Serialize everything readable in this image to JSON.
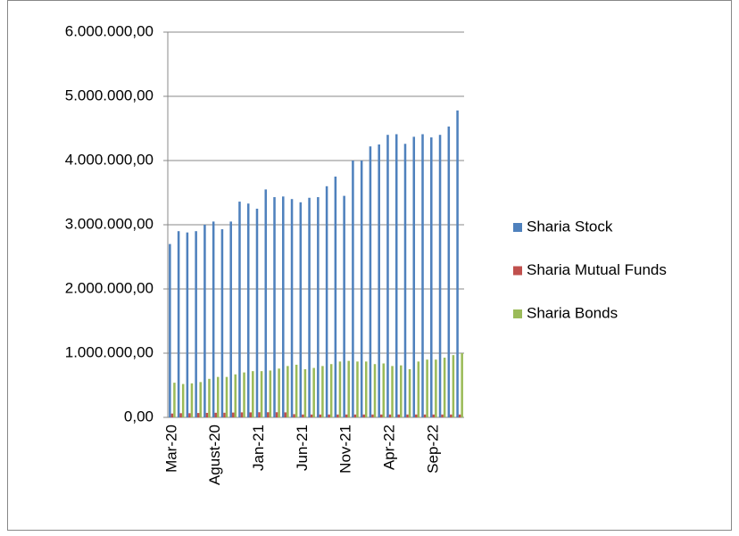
{
  "chart_data": {
    "type": "bar",
    "categories": [
      "Mar-20",
      null,
      null,
      null,
      null,
      "Agust-20",
      null,
      null,
      null,
      null,
      "Jan-21",
      null,
      null,
      null,
      null,
      "Jun-21",
      null,
      null,
      null,
      null,
      "Nov-21",
      null,
      null,
      null,
      null,
      "Apr-22",
      null,
      null,
      null,
      null,
      "Sep-22",
      null,
      null,
      null
    ],
    "series": [
      {
        "name": "Sharia Stock",
        "color": "#4f81bd",
        "values": [
          2700000,
          2900000,
          2880000,
          2900000,
          3000000,
          3050000,
          2930000,
          3050000,
          3360000,
          3330000,
          3250000,
          3550000,
          3430000,
          3440000,
          3400000,
          3350000,
          3420000,
          3430000,
          3600000,
          3750000,
          3450000,
          4000000,
          4000000,
          4220000,
          4250000,
          4400000,
          4410000,
          4260000,
          4370000,
          4410000,
          4360000,
          4400000,
          4530000,
          4780000
        ]
      },
      {
        "name": "Sharia Mutual Funds",
        "color": "#c0504d",
        "values": [
          60000,
          65000,
          65000,
          68000,
          70000,
          72000,
          72000,
          75000,
          78000,
          78000,
          80000,
          80000,
          80000,
          78000,
          50000,
          45000,
          45000,
          45000,
          45000,
          45000,
          45000,
          45000,
          45000,
          45000,
          45000,
          45000,
          45000,
          45000,
          45000,
          45000,
          45000,
          45000,
          45000,
          45000
        ]
      },
      {
        "name": "Sharia Bonds",
        "color": "#9bbb59",
        "values": [
          540000,
          520000,
          530000,
          550000,
          600000,
          630000,
          630000,
          670000,
          700000,
          720000,
          720000,
          730000,
          760000,
          800000,
          820000,
          750000,
          770000,
          800000,
          830000,
          870000,
          880000,
          870000,
          870000,
          830000,
          840000,
          800000,
          810000,
          750000,
          870000,
          900000,
          900000,
          930000,
          970000,
          1000000
        ]
      }
    ],
    "ylim": [
      0,
      6000000
    ],
    "yticks": [
      {
        "value": 0,
        "label": "0,00"
      },
      {
        "value": 1000000,
        "label": "1.000.000,00"
      },
      {
        "value": 2000000,
        "label": "2.000.000,00"
      },
      {
        "value": 3000000,
        "label": "3.000.000,00"
      },
      {
        "value": 4000000,
        "label": "4.000.000,00"
      },
      {
        "value": 5000000,
        "label": "5.000.000,00"
      },
      {
        "value": 6000000,
        "label": "6.000.000,00"
      }
    ],
    "grid": true,
    "legend": "right"
  }
}
